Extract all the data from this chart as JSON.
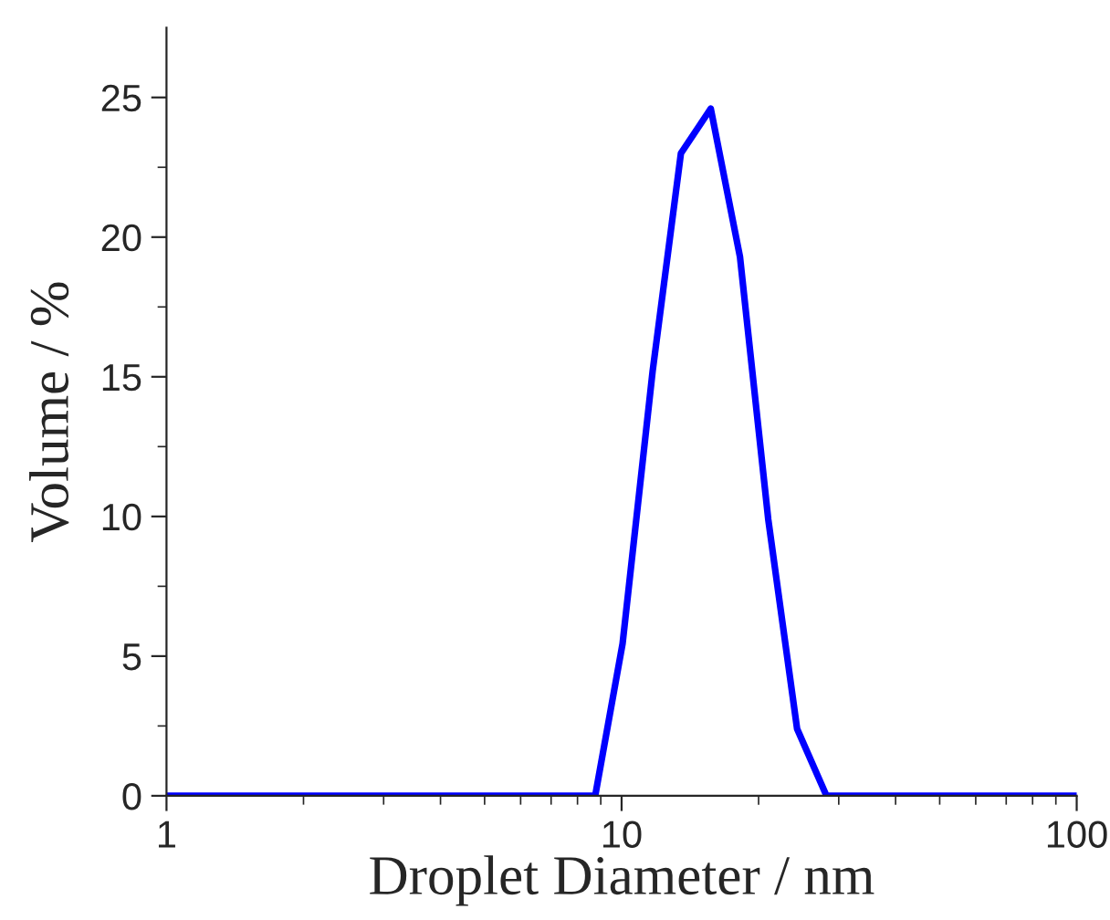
{
  "chart_data": {
    "type": "line",
    "xlabel": "Droplet Diameter / nm",
    "ylabel": "Volume / %",
    "log": "x",
    "x": [
      1,
      8.75,
      10.05,
      11.7,
      13.5,
      15.7,
      18.2,
      21.0,
      24.3,
      28.2,
      100
    ],
    "series": [
      {
        "color": "#0000ff",
        "values": [
          0,
          0,
          5.45,
          15.2,
          23.0,
          24.6,
          19.3,
          9.9,
          2.4,
          0,
          0
        ]
      }
    ],
    "xlim": [
      1,
      100
    ],
    "xticks": [
      1,
      10,
      100
    ],
    "ylim": [
      0,
      27.5
    ],
    "yticks": [
      0,
      5,
      10,
      15,
      20,
      25
    ],
    "grid": false,
    "marker": "none",
    "line_style": "solid"
  }
}
